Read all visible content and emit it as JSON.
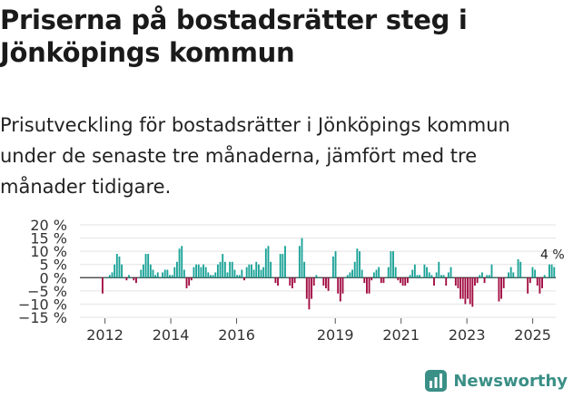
{
  "header": {
    "title": "Priserna på bostadsrätter steg i Jönköpings kommun",
    "subtitle": "Prisutveckling för bostadsrätter i Jönköpings kommun under de senaste tre månaderna, jämfört med tre månader tidigare."
  },
  "brand": {
    "name": "Newsworthy"
  },
  "colors": {
    "positive": "#1aa297",
    "negative": "#a10b41",
    "grid": "#e3e3e3",
    "zero": "#333333"
  },
  "chart_data": {
    "type": "bar",
    "title": "Priserna på bostadsrätter steg i Jönköpings kommun",
    "xlabel": "",
    "ylabel": "",
    "ylim": [
      -15,
      20
    ],
    "yticks": [
      20,
      15,
      10,
      5,
      0,
      -5,
      -10,
      -15
    ],
    "ytick_labels": [
      "20 %",
      "15 %",
      "10 %",
      "5 %",
      "0 %",
      "−5 %",
      "−10 %",
      "−15 %"
    ],
    "xtick_labels": [
      "2012",
      "2014",
      "2016",
      "2019",
      "2021",
      "2023",
      "2025"
    ],
    "xtick_positions": [
      2012.0,
      2014.0,
      2016.0,
      2019.0,
      2021.0,
      2023.0,
      2025.0
    ],
    "x_start": 2011.9,
    "x_end": 2025.7,
    "annotation": "4 %",
    "values": [
      -6,
      0,
      0,
      1,
      2,
      5,
      9,
      8,
      5,
      0,
      -1,
      1,
      0,
      -1,
      -2,
      0,
      3,
      5,
      9,
      9,
      5,
      3,
      1,
      2,
      0,
      2,
      3,
      3,
      1,
      1,
      4,
      6,
      11,
      12,
      3,
      -4,
      -3,
      -1,
      4,
      5,
      5,
      4,
      5,
      4,
      2,
      1,
      1,
      2,
      5,
      6,
      9,
      6,
      2,
      6,
      6,
      3,
      1,
      1,
      3,
      -1,
      4,
      5,
      5,
      3,
      6,
      5,
      3,
      4,
      11,
      12,
      6,
      0,
      -2,
      -3,
      9,
      9,
      12,
      0,
      -3,
      -4,
      -2,
      0,
      12,
      15,
      6,
      -8,
      -12,
      -8,
      -3,
      1,
      0,
      0,
      -3,
      -4,
      -5,
      0,
      8,
      10,
      -6,
      -9,
      -6,
      0,
      1,
      2,
      3,
      6,
      11,
      10,
      3,
      -2,
      -6,
      -6,
      -1,
      2,
      3,
      4,
      -2,
      -2,
      0,
      4,
      10,
      10,
      4,
      -1,
      -2,
      -3,
      -3,
      -2,
      1,
      3,
      5,
      1,
      1,
      0,
      5,
      4,
      2,
      1,
      -3,
      2,
      6,
      1,
      1,
      -3,
      2,
      4,
      0,
      -3,
      -4,
      -8,
      -8,
      -10,
      -8,
      -10,
      -11,
      -3,
      -2,
      1,
      2,
      -2,
      1,
      1,
      5,
      0,
      0,
      -9,
      -8,
      -4,
      0,
      2,
      4,
      2,
      0,
      7,
      6,
      0,
      0,
      -6,
      -2,
      4,
      3,
      -3,
      -6,
      -4,
      1,
      0,
      5,
      5,
      4
    ]
  }
}
